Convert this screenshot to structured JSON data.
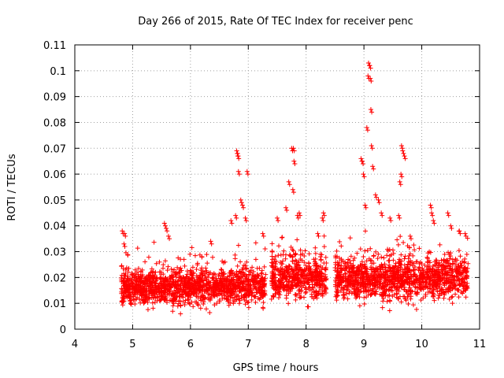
{
  "chart_data": {
    "type": "scatter",
    "title": "Day 266 of 2015, Rate Of TEC Index for receiver penc",
    "xlabel": "GPS time / hours",
    "ylabel": "ROTI / TECUs",
    "xlim": [
      4,
      11
    ],
    "ylim": [
      0,
      0.11
    ],
    "x_ticks": [
      4,
      5,
      6,
      7,
      8,
      9,
      10,
      11
    ],
    "x_tick_labels": [
      "4",
      "5",
      "6",
      "7",
      "8",
      "9",
      "10",
      "11"
    ],
    "y_ticks": [
      0,
      0.01,
      0.02,
      0.03,
      0.04,
      0.05,
      0.06,
      0.07,
      0.08,
      0.09,
      0.1,
      0.11
    ],
    "y_tick_labels": [
      "0",
      "0.01",
      "0.02",
      "0.03",
      "0.04",
      "0.05",
      "0.06",
      "0.07",
      "0.08",
      "0.09",
      "0.1",
      "0.11"
    ],
    "grid": true,
    "marker": "+",
    "series_color": "#ff0000",
    "dense_segments": [
      {
        "x_start": 4.8,
        "x_end": 7.3,
        "typical_low": 0.005,
        "typical_high": 0.025
      },
      {
        "x_start": 7.4,
        "x_end": 8.35,
        "typical_low": 0.006,
        "typical_high": 0.03
      },
      {
        "x_start": 8.5,
        "x_end": 10.8,
        "typical_low": 0.006,
        "typical_high": 0.03
      }
    ],
    "outlier_points": [
      {
        "x": 4.82,
        "y": 0.038
      },
      {
        "x": 4.86,
        "y": 0.037
      },
      {
        "x": 4.85,
        "y": 0.033
      },
      {
        "x": 5.55,
        "y": 0.041
      },
      {
        "x": 5.58,
        "y": 0.039
      },
      {
        "x": 5.62,
        "y": 0.036
      },
      {
        "x": 6.35,
        "y": 0.034
      },
      {
        "x": 6.7,
        "y": 0.042
      },
      {
        "x": 6.78,
        "y": 0.044
      },
      {
        "x": 6.8,
        "y": 0.069
      },
      {
        "x": 6.81,
        "y": 0.068
      },
      {
        "x": 6.82,
        "y": 0.067
      },
      {
        "x": 6.83,
        "y": 0.061
      },
      {
        "x": 6.87,
        "y": 0.05
      },
      {
        "x": 6.9,
        "y": 0.048
      },
      {
        "x": 6.98,
        "y": 0.061
      },
      {
        "x": 6.95,
        "y": 0.043
      },
      {
        "x": 7.25,
        "y": 0.037
      },
      {
        "x": 7.5,
        "y": 0.043
      },
      {
        "x": 7.65,
        "y": 0.047
      },
      {
        "x": 7.7,
        "y": 0.057
      },
      {
        "x": 7.75,
        "y": 0.07
      },
      {
        "x": 7.78,
        "y": 0.07
      },
      {
        "x": 7.79,
        "y": 0.065
      },
      {
        "x": 7.77,
        "y": 0.054
      },
      {
        "x": 7.85,
        "y": 0.044
      },
      {
        "x": 7.88,
        "y": 0.045
      },
      {
        "x": 8.2,
        "y": 0.037
      },
      {
        "x": 8.3,
        "y": 0.045
      },
      {
        "x": 8.28,
        "y": 0.043
      },
      {
        "x": 8.95,
        "y": 0.066
      },
      {
        "x": 8.97,
        "y": 0.065
      },
      {
        "x": 8.99,
        "y": 0.06
      },
      {
        "x": 9.02,
        "y": 0.048
      },
      {
        "x": 9.05,
        "y": 0.078
      },
      {
        "x": 9.07,
        "y": 0.098
      },
      {
        "x": 9.08,
        "y": 0.103
      },
      {
        "x": 9.1,
        "y": 0.102
      },
      {
        "x": 9.11,
        "y": 0.097
      },
      {
        "x": 9.12,
        "y": 0.085
      },
      {
        "x": 9.13,
        "y": 0.071
      },
      {
        "x": 9.15,
        "y": 0.063
      },
      {
        "x": 9.2,
        "y": 0.052
      },
      {
        "x": 9.25,
        "y": 0.05
      },
      {
        "x": 9.3,
        "y": 0.045
      },
      {
        "x": 9.45,
        "y": 0.043
      },
      {
        "x": 9.6,
        "y": 0.044
      },
      {
        "x": 9.62,
        "y": 0.057
      },
      {
        "x": 9.64,
        "y": 0.06
      },
      {
        "x": 9.65,
        "y": 0.071
      },
      {
        "x": 9.67,
        "y": 0.069
      },
      {
        "x": 9.7,
        "y": 0.067
      },
      {
        "x": 9.8,
        "y": 0.036
      },
      {
        "x": 10.15,
        "y": 0.048
      },
      {
        "x": 10.17,
        "y": 0.045
      },
      {
        "x": 10.2,
        "y": 0.042
      },
      {
        "x": 10.45,
        "y": 0.045
      },
      {
        "x": 10.5,
        "y": 0.04
      },
      {
        "x": 10.65,
        "y": 0.038
      },
      {
        "x": 10.75,
        "y": 0.037
      }
    ]
  }
}
